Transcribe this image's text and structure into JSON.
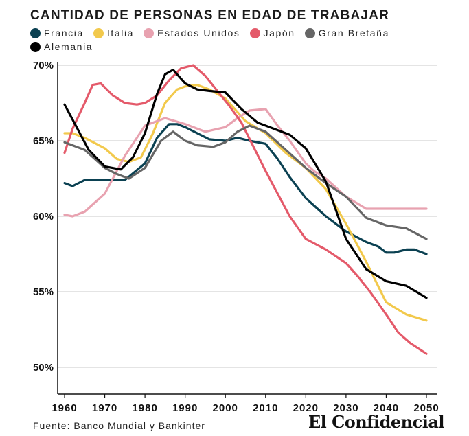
{
  "title": "CANTIDAD DE PERSONAS EN EDAD DE TRABAJAR",
  "source": "Fuente: Banco Mundial y Bankinter",
  "brand": "El Confidencial",
  "chart_data": {
    "type": "line",
    "title": "CANTIDAD DE PERSONAS EN EDAD DE TRABAJAR",
    "xlabel": "",
    "ylabel": "",
    "xlim": [
      1960,
      2050
    ],
    "ylim": [
      49,
      70
    ],
    "x_ticks": [
      1960,
      1970,
      1980,
      1990,
      2000,
      2010,
      2020,
      2030,
      2040,
      2050
    ],
    "x_tick_labels": [
      "1960",
      "1970",
      "1980",
      "1990",
      "2000",
      "2010",
      "2020",
      "2030",
      "2040",
      "2050"
    ],
    "y_ticks": [
      50,
      55,
      60,
      65,
      70
    ],
    "y_tick_labels": [
      "50%",
      "55%",
      "60%",
      "65%",
      "70%"
    ],
    "grid": "horizontal",
    "legend_position": "top-left",
    "series": [
      {
        "name": "Francia",
        "color": "#0b4152",
        "x": [
          1960,
          1962,
          1965,
          1970,
          1975,
          1980,
          1983,
          1986,
          1988,
          1990,
          1993,
          1996,
          2000,
          2003,
          2006,
          2010,
          2013,
          2016,
          2020,
          2025,
          2030,
          2035,
          2038,
          2040,
          2042,
          2045,
          2047,
          2050
        ],
        "y": [
          62.2,
          62.0,
          62.4,
          62.4,
          62.4,
          63.5,
          65.2,
          66.1,
          66.1,
          65.9,
          65.5,
          65.1,
          65.0,
          65.2,
          65.0,
          64.8,
          63.8,
          62.6,
          61.2,
          60.0,
          59.0,
          58.3,
          58.0,
          57.6,
          57.6,
          57.8,
          57.8,
          57.5
        ]
      },
      {
        "name": "Italia",
        "color": "#f2c94c",
        "x": [
          1960,
          1962,
          1965,
          1970,
          1973,
          1976,
          1979,
          1982,
          1985,
          1988,
          1990,
          1993,
          1996,
          2000,
          2005,
          2010,
          2015,
          2020,
          2025,
          2030,
          2035,
          2040,
          2045,
          2050
        ],
        "y": [
          65.5,
          65.5,
          65.2,
          64.5,
          63.8,
          63.6,
          63.9,
          65.5,
          67.5,
          68.4,
          68.6,
          68.7,
          68.4,
          67.8,
          66.3,
          65.5,
          64.2,
          63.2,
          61.8,
          59.5,
          57.0,
          54.3,
          53.5,
          53.1
        ]
      },
      {
        "name": "Estados Unidos",
        "color": "#e8a2b0",
        "x": [
          1960,
          1962,
          1965,
          1970,
          1975,
          1980,
          1985,
          1990,
          1995,
          2000,
          2003,
          2006,
          2010,
          2013,
          2016,
          2020,
          2022,
          2025,
          2030,
          2035,
          2040,
          2045,
          2050
        ],
        "y": [
          60.1,
          60.0,
          60.3,
          61.5,
          64.0,
          66.0,
          66.5,
          66.1,
          65.6,
          65.9,
          66.5,
          67.0,
          67.1,
          66.0,
          65.0,
          63.5,
          63.0,
          62.5,
          61.3,
          60.5,
          60.5,
          60.5,
          60.5
        ]
      },
      {
        "name": "Japón",
        "color": "#e45a6a",
        "x": [
          1960,
          1962,
          1965,
          1967,
          1969,
          1972,
          1975,
          1978,
          1980,
          1983,
          1986,
          1989,
          1992,
          1995,
          1998,
          2001,
          2004,
          2007,
          2010,
          2013,
          2016,
          2020,
          2025,
          2030,
          2033,
          2036,
          2040,
          2043,
          2046,
          2050
        ],
        "y": [
          64.2,
          65.8,
          67.5,
          68.7,
          68.8,
          68.0,
          67.5,
          67.4,
          67.5,
          68.0,
          69.0,
          69.8,
          70.0,
          69.3,
          68.3,
          67.3,
          66.2,
          64.6,
          63.0,
          61.5,
          60.0,
          58.5,
          57.8,
          56.9,
          56.0,
          55.0,
          53.5,
          52.3,
          51.6,
          50.9
        ]
      },
      {
        "name": "Gran Bretaña",
        "color": "#666666",
        "x": [
          1960,
          1965,
          1970,
          1973,
          1976,
          1980,
          1984,
          1987,
          1990,
          1993,
          1997,
          2000,
          2003,
          2006,
          2010,
          2015,
          2020,
          2025,
          2030,
          2035,
          2040,
          2045,
          2050
        ],
        "y": [
          64.9,
          64.4,
          63.2,
          62.8,
          62.5,
          63.2,
          65.0,
          65.6,
          65.0,
          64.7,
          64.6,
          64.9,
          65.6,
          66.0,
          65.6,
          64.4,
          63.2,
          62.2,
          61.3,
          59.9,
          59.4,
          59.2,
          58.5
        ]
      },
      {
        "name": "Alemania",
        "color": "#000000",
        "x": [
          1960,
          1963,
          1966,
          1970,
          1974,
          1977,
          1980,
          1983,
          1985,
          1987,
          1990,
          1993,
          1996,
          2000,
          2004,
          2008,
          2012,
          2016,
          2020,
          2025,
          2030,
          2035,
          2040,
          2045,
          2050
        ],
        "y": [
          67.4,
          65.9,
          64.4,
          63.3,
          63.1,
          63.9,
          65.5,
          68.1,
          69.4,
          69.7,
          68.8,
          68.4,
          68.3,
          68.2,
          67.1,
          66.2,
          65.8,
          65.4,
          64.5,
          62.3,
          58.5,
          56.5,
          55.7,
          55.4,
          54.6
        ]
      }
    ]
  }
}
